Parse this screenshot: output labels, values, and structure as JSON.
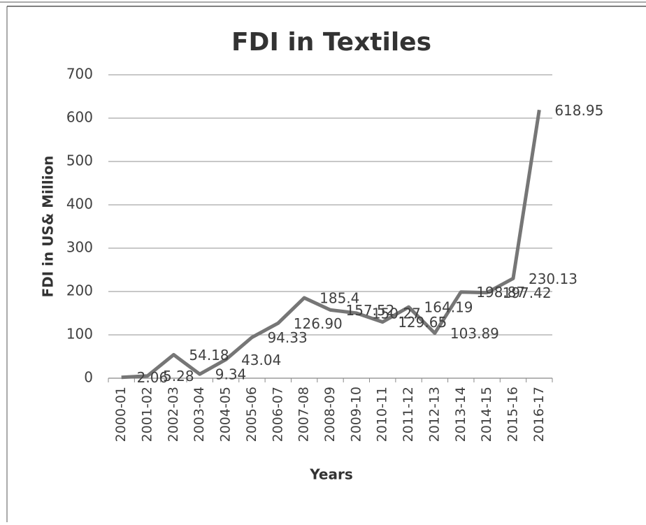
{
  "chart_data": {
    "type": "line",
    "title": "FDI in Textiles",
    "x_label": "Years",
    "y_label": "FDI in US& Million",
    "categories": [
      "2000-01",
      "2001-02",
      "2002-03",
      "2003-04",
      "2004-05",
      "2005-06",
      "2006-07",
      "2007-08",
      "2008-09",
      "2009-10",
      "2010-11",
      "2011-12",
      "2012-13",
      "2013-14",
      "2014-15",
      "2015-16",
      "2016-17"
    ],
    "series": [
      {
        "name": "FDI",
        "color": "#767676",
        "values": [
          2.06,
          5.28,
          54.18,
          9.34,
          43.04,
          94.33,
          126.9,
          185.4,
          157.52,
          150.27,
          129.65,
          164.19,
          103.89,
          198.87,
          197.42,
          230.13,
          618.95
        ],
        "value_labels": [
          "2.06",
          "5.28",
          "54.18",
          "9.34",
          "43.04",
          "94.33",
          "126.90",
          "185.4",
          "157.52",
          "150.27",
          "129.65",
          "164.19",
          "103.89",
          "198.87",
          "197.42",
          "230.13",
          "618.95"
        ]
      }
    ],
    "ylim": [
      0,
      700
    ],
    "yticks": [
      0,
      100,
      200,
      300,
      400,
      500,
      600,
      700
    ],
    "grid": true
  }
}
